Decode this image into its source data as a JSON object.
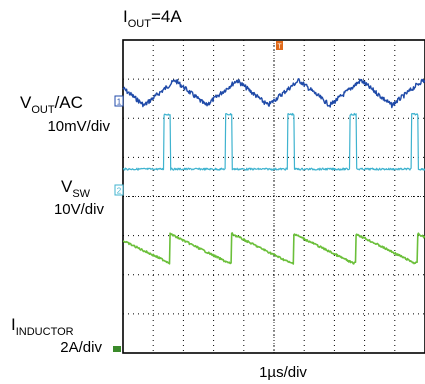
{
  "chart_data": {
    "type": "line",
    "title_main": "I",
    "title_sub": "OUT",
    "title_rest": "=4A",
    "xlabel": "1µs/div",
    "grid": true,
    "divisions": {
      "x": 10,
      "y": 8
    },
    "trigger_marker": "T",
    "channels": [
      {
        "name_main": "V",
        "name_sub": "OUT",
        "name_rest": "/AC",
        "scale": "10mV/div",
        "marker": "1",
        "color": "#1f4aa8",
        "description_type": "ripple",
        "period_div": 2.05,
        "phase_div": 0.7,
        "amplitude_div": 0.32,
        "offset_div": 1.35
      },
      {
        "name_main": "V",
        "name_sub": "SW",
        "name_rest": "",
        "scale": "10V/div",
        "marker": "2",
        "color": "#3fb3cf",
        "description_type": "pulse",
        "period_div": 2.05,
        "pulse_starts_div": [
          1.35,
          3.4,
          5.45,
          7.5,
          9.55
        ],
        "pulse_width_div": 0.22,
        "level_low_div": 3.3,
        "level_high_div": 1.9
      },
      {
        "name_main": "I",
        "name_sub": "INDUCTOR",
        "name_rest": "",
        "scale": "2A/div",
        "marker": "",
        "color": "#6bbf3a",
        "description_type": "sawtooth",
        "period_div": 2.05,
        "peak_starts_div": [
          1.55,
          3.6,
          5.65,
          7.7,
          9.75
        ],
        "high_div": 4.95,
        "low_div": 5.7
      }
    ],
    "ground_marker_color": "#3a8a2a"
  }
}
